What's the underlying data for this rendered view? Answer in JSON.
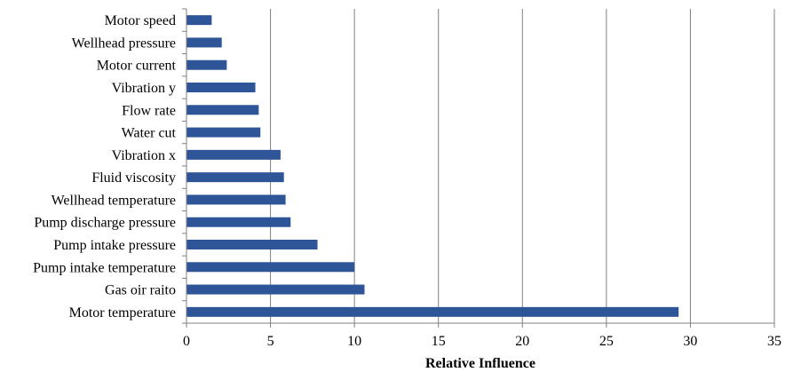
{
  "chart_data": {
    "type": "bar",
    "orientation": "horizontal",
    "categories": [
      "Motor speed",
      "Wellhead pressure",
      "Motor current",
      "Vibration y",
      "Flow rate",
      "Water cut",
      "Vibration x",
      "Fluid viscosity",
      "Wellhead temperature",
      "Pump discharge pressure",
      "Pump intake pressure",
      "Pump intake temperature",
      "Gas oir raito",
      "Motor temperature"
    ],
    "values": [
      1.5,
      2.1,
      2.4,
      4.1,
      4.3,
      4.4,
      5.6,
      5.8,
      5.9,
      6.2,
      7.8,
      10.0,
      10.6,
      29.3
    ],
    "xlabel": "Relative Influence",
    "ylabel": "",
    "xlim": [
      0,
      35
    ],
    "xticks": [
      "0",
      "5",
      "10",
      "15",
      "20",
      "25",
      "30",
      "35"
    ],
    "grid": "vertical",
    "legend": "none",
    "bar_color": "#2E5597",
    "grid_color": "#808080"
  }
}
